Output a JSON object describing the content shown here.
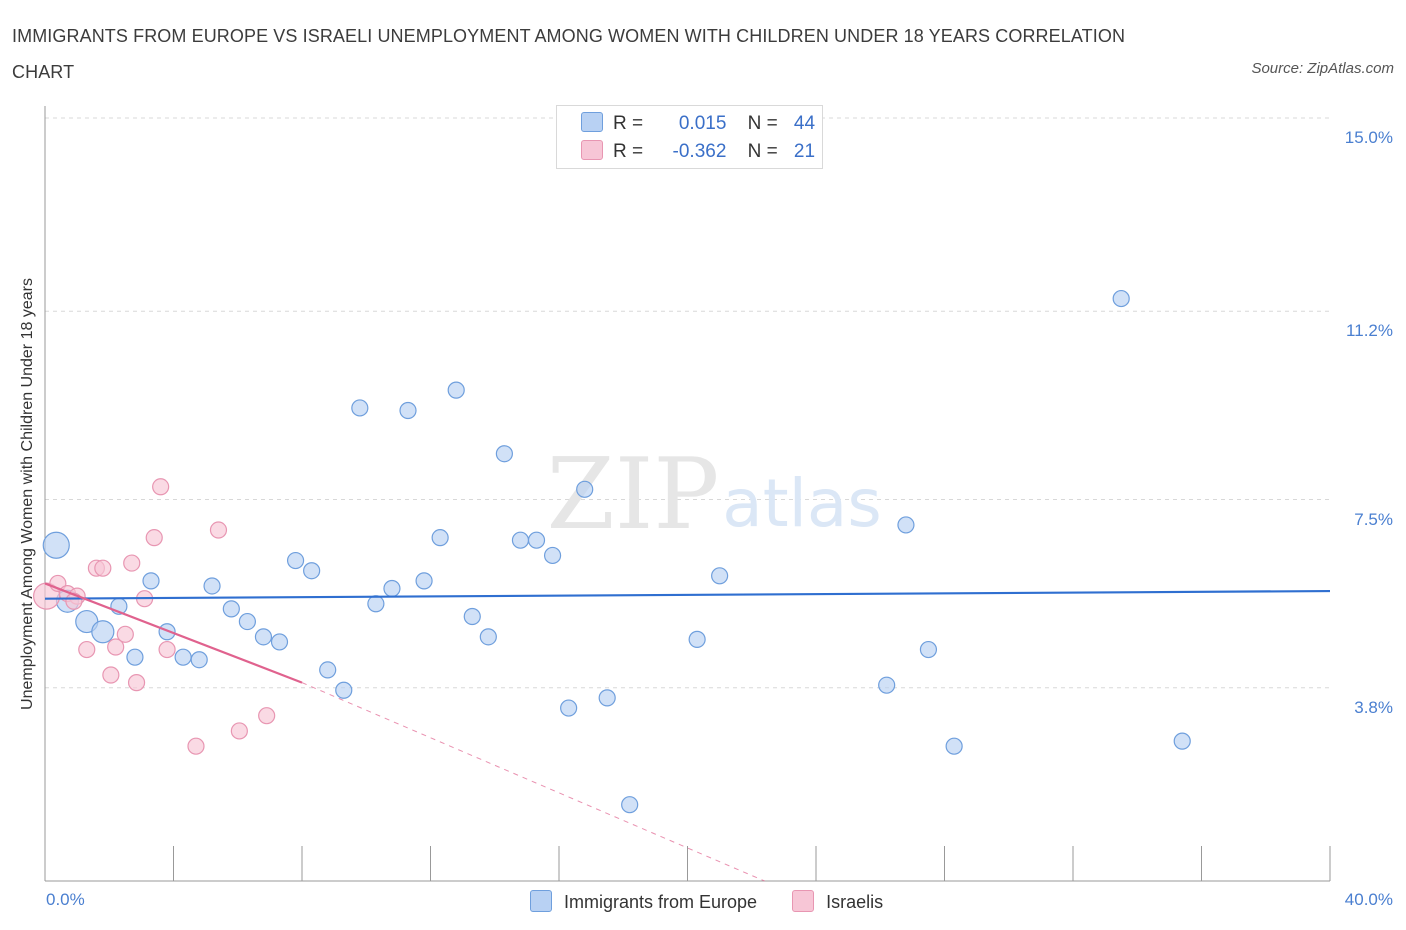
{
  "title": "IMMIGRANTS FROM EUROPE VS ISRAELI UNEMPLOYMENT AMONG WOMEN WITH CHILDREN UNDER 18 YEARS CORRELATION CHART",
  "source": "Source: ZipAtlas.com",
  "watermark": {
    "zip": "ZIP",
    "atlas": "atlas"
  },
  "legend": {
    "rows": [
      {
        "r_label": "R =",
        "r_value": "0.015",
        "n_label": "N =",
        "n_value": "44"
      },
      {
        "r_label": "R =",
        "r_value": "-0.362",
        "n_label": "N =",
        "n_value": "21"
      }
    ]
  },
  "bottom_legend": {
    "series1": "Immigrants from Europe",
    "series2": "Israelis"
  },
  "colors": {
    "blue_fill": "#b8d1f3",
    "blue_stroke": "#6f9fdd",
    "blue_line": "#2f6fd0",
    "pink_fill": "#f7c6d6",
    "pink_stroke": "#e896b2",
    "pink_line": "#e0628e",
    "grid": "#d8d8d8",
    "axis": "#999999",
    "tick_text": "#4a7fd0"
  },
  "chart_data": {
    "type": "scatter",
    "title": "IMMIGRANTS FROM EUROPE VS ISRAELI UNEMPLOYMENT AMONG WOMEN WITH CHILDREN UNDER 18 YEARS CORRELATION CHART",
    "xlabel": "",
    "ylabel": "Unemployment Among Women with Children Under 18 years",
    "xlim": [
      0,
      40
    ],
    "ylim": [
      0,
      15
    ],
    "x_tick_labels": [
      "0.0%",
      "40.0%"
    ],
    "y_ticks": [
      3.8,
      7.5,
      11.2,
      15.0
    ],
    "y_tick_labels": [
      "3.8%",
      "7.5%",
      "11.2%",
      "15.0%"
    ],
    "grid": true,
    "legend_position": "top-center",
    "series": [
      {
        "name": "Immigrants from Europe",
        "R": 0.015,
        "N": 44,
        "trend": {
          "x0": 0.0,
          "y0": 5.55,
          "x1": 40.0,
          "y1": 5.7
        },
        "points": [
          {
            "x": 0.35,
            "y": 6.6,
            "s": 3
          },
          {
            "x": 0.7,
            "y": 5.5,
            "s": 2
          },
          {
            "x": 1.3,
            "y": 5.1,
            "s": 2
          },
          {
            "x": 1.8,
            "y": 4.9,
            "s": 2
          },
          {
            "x": 2.3,
            "y": 5.4,
            "s": 1
          },
          {
            "x": 2.8,
            "y": 4.4,
            "s": 1
          },
          {
            "x": 3.3,
            "y": 5.9,
            "s": 1
          },
          {
            "x": 3.8,
            "y": 4.9,
            "s": 1
          },
          {
            "x": 4.3,
            "y": 4.4,
            "s": 1
          },
          {
            "x": 4.8,
            "y": 4.35,
            "s": 1
          },
          {
            "x": 5.2,
            "y": 5.8,
            "s": 1
          },
          {
            "x": 5.8,
            "y": 5.35,
            "s": 1
          },
          {
            "x": 6.3,
            "y": 5.1,
            "s": 1
          },
          {
            "x": 6.8,
            "y": 4.8,
            "s": 1
          },
          {
            "x": 7.3,
            "y": 4.7,
            "s": 1
          },
          {
            "x": 7.8,
            "y": 6.3,
            "s": 1
          },
          {
            "x": 8.3,
            "y": 6.1,
            "s": 1
          },
          {
            "x": 8.8,
            "y": 4.15,
            "s": 1
          },
          {
            "x": 9.3,
            "y": 3.75,
            "s": 1
          },
          {
            "x": 9.8,
            "y": 9.3,
            "s": 1
          },
          {
            "x": 10.3,
            "y": 5.45,
            "s": 1
          },
          {
            "x": 10.8,
            "y": 5.75,
            "s": 1
          },
          {
            "x": 11.3,
            "y": 9.25,
            "s": 1
          },
          {
            "x": 11.8,
            "y": 5.9,
            "s": 1
          },
          {
            "x": 12.3,
            "y": 6.75,
            "s": 1
          },
          {
            "x": 12.8,
            "y": 9.65,
            "s": 1
          },
          {
            "x": 13.3,
            "y": 5.2,
            "s": 1
          },
          {
            "x": 13.8,
            "y": 4.8,
            "s": 1
          },
          {
            "x": 14.3,
            "y": 8.4,
            "s": 1
          },
          {
            "x": 14.8,
            "y": 6.7,
            "s": 1
          },
          {
            "x": 15.3,
            "y": 6.7,
            "s": 1
          },
          {
            "x": 15.8,
            "y": 6.4,
            "s": 1
          },
          {
            "x": 16.3,
            "y": 3.4,
            "s": 1
          },
          {
            "x": 16.8,
            "y": 7.7,
            "s": 1
          },
          {
            "x": 17.5,
            "y": 3.6,
            "s": 1
          },
          {
            "x": 18.2,
            "y": 1.5,
            "s": 1
          },
          {
            "x": 20.3,
            "y": 4.75,
            "s": 1
          },
          {
            "x": 21.0,
            "y": 6.0,
            "s": 1
          },
          {
            "x": 26.2,
            "y": 3.85,
            "s": 1
          },
          {
            "x": 26.8,
            "y": 7.0,
            "s": 1
          },
          {
            "x": 27.5,
            "y": 4.55,
            "s": 1
          },
          {
            "x": 28.3,
            "y": 2.65,
            "s": 1
          },
          {
            "x": 33.5,
            "y": 11.45,
            "s": 1
          },
          {
            "x": 35.4,
            "y": 2.75,
            "s": 1
          }
        ]
      },
      {
        "name": "Israelis",
        "R": -0.362,
        "N": 21,
        "trend": {
          "x0": 0.0,
          "y0": 5.85,
          "x1": 8.0,
          "y1": 3.9,
          "dash_to_x": 22.4,
          "dash_to_y": 0.0
        },
        "points": [
          {
            "x": 0.05,
            "y": 5.6,
            "s": 3
          },
          {
            "x": 0.4,
            "y": 5.85,
            "s": 1
          },
          {
            "x": 0.7,
            "y": 5.65,
            "s": 1
          },
          {
            "x": 1.0,
            "y": 5.6,
            "s": 1
          },
          {
            "x": 1.3,
            "y": 4.55,
            "s": 1
          },
          {
            "x": 1.6,
            "y": 6.15,
            "s": 1
          },
          {
            "x": 1.8,
            "y": 6.15,
            "s": 1
          },
          {
            "x": 2.05,
            "y": 4.05,
            "s": 1
          },
          {
            "x": 2.2,
            "y": 4.6,
            "s": 1
          },
          {
            "x": 2.5,
            "y": 4.85,
            "s": 1
          },
          {
            "x": 2.7,
            "y": 6.25,
            "s": 1
          },
          {
            "x": 2.85,
            "y": 3.9,
            "s": 1
          },
          {
            "x": 3.1,
            "y": 5.55,
            "s": 1
          },
          {
            "x": 3.4,
            "y": 6.75,
            "s": 1
          },
          {
            "x": 3.6,
            "y": 7.75,
            "s": 1
          },
          {
            "x": 3.8,
            "y": 4.55,
            "s": 1
          },
          {
            "x": 4.7,
            "y": 2.65,
            "s": 1
          },
          {
            "x": 5.4,
            "y": 6.9,
            "s": 1
          },
          {
            "x": 6.05,
            "y": 2.95,
            "s": 1
          },
          {
            "x": 6.9,
            "y": 3.25,
            "s": 1
          },
          {
            "x": 0.9,
            "y": 5.5,
            "s": 1
          }
        ]
      }
    ]
  }
}
